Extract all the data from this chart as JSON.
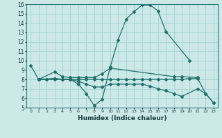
{
  "xlabel": "Humidex (Indice chaleur)",
  "xlim": [
    -0.5,
    23.5
  ],
  "ylim": [
    5,
    16
  ],
  "background_color": "#cce9e8",
  "grid_color": "#aad4d2",
  "line_color": "#1e6e6a",
  "series1_x": [
    0,
    1,
    2,
    3,
    4,
    5,
    6,
    7,
    8,
    9,
    10,
    11,
    12,
    13,
    14,
    15,
    16,
    17,
    20
  ],
  "series1_y": [
    9.5,
    8.0,
    8.0,
    8.1,
    8.0,
    8.0,
    7.5,
    6.5,
    5.2,
    5.9,
    9.3,
    12.2,
    14.4,
    15.2,
    15.9,
    15.9,
    15.3,
    13.1,
    10.0
  ],
  "series2_x": [
    1,
    3,
    4,
    5,
    6,
    7,
    8,
    9,
    10,
    18,
    19,
    21
  ],
  "series2_y": [
    8.0,
    8.8,
    8.3,
    8.2,
    8.2,
    8.2,
    8.2,
    8.6,
    9.2,
    8.3,
    8.3,
    8.2
  ],
  "series3_x": [
    1,
    3,
    4,
    5,
    6,
    7,
    8,
    9,
    10,
    11,
    12,
    13,
    14,
    15,
    16,
    17,
    18,
    19,
    21,
    22,
    23
  ],
  "series3_y": [
    8.0,
    8.1,
    8.0,
    8.0,
    7.8,
    7.5,
    7.2,
    7.2,
    7.5,
    7.5,
    7.5,
    7.5,
    7.5,
    7.3,
    7.0,
    6.8,
    6.5,
    6.2,
    7.0,
    6.5,
    5.5
  ],
  "series4_x": [
    1,
    2,
    3,
    4,
    5,
    6,
    7,
    8,
    9,
    10,
    11,
    12,
    13,
    14,
    15,
    16,
    17,
    18,
    19,
    20,
    21,
    22,
    23
  ],
  "series4_y": [
    8.0,
    8.0,
    8.0,
    8.0,
    8.0,
    8.0,
    8.0,
    8.0,
    8.0,
    8.0,
    8.0,
    8.0,
    8.0,
    8.0,
    8.0,
    8.0,
    8.0,
    8.0,
    8.0,
    8.1,
    8.1,
    6.5,
    5.5
  ]
}
